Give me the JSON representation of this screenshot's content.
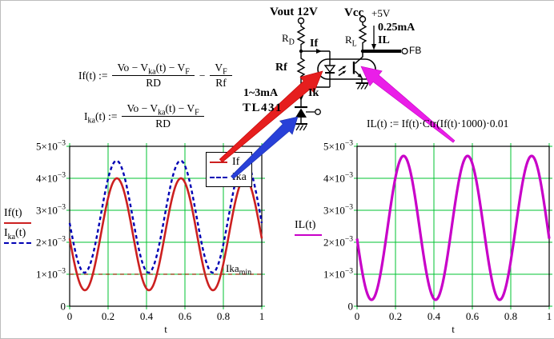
{
  "circuit": {
    "vout_label": "Vout 12V",
    "vcc_label": "Vcc",
    "vcc_value": "+5V",
    "rd_label_html": "R<sub>D</sub>",
    "rl_label_html": "R<sub>L</sub>",
    "rf_label": "Rf",
    "if_label": "If",
    "ik_label": "Ik",
    "il_label": "IL",
    "il_current_label": "0.25mA",
    "cathode_current_label": "1~3mA",
    "tl431_label": "TL431",
    "fb_label": "FB",
    "icons": {
      "optocoupler": "optocoupler-capsule-with-led-and-phototransistor",
      "grounds": "hatched-ground-symbol",
      "terminals": "open-circle-terminal"
    },
    "arrow_colors": {
      "red": "#e61e1e",
      "blue": "#2840d8",
      "magenta": "#ea1ee8"
    }
  },
  "formulas": {
    "if_def": {
      "lhs": "If(t) :=",
      "num_html": "Vo − V<sub>ka</sub>(t) − V<sub>F</sub>",
      "den": "RD",
      "operator": "−",
      "num2_html": "V<sub>F</sub>",
      "den2": "Rf"
    },
    "ika_def": {
      "lhs_html": "I<sub>ka</sub>(t) :=",
      "num_html": "Vo − V<sub>ka</sub>(t) − V<sub>F</sub>",
      "den": "RD"
    },
    "il_def": "IL(t) := If(t)·Ctr(If(t)·1000)·0.01"
  },
  "chart_data": [
    {
      "type": "line",
      "title": "",
      "xlabel": "t",
      "ylabel": "",
      "xlim": [
        0,
        1
      ],
      "ylim": [
        0,
        0.005
      ],
      "grid": true,
      "grid_color": "#00c332",
      "x_ticks": {
        "values": [
          0,
          0.2,
          0.4,
          0.6,
          0.8,
          1
        ],
        "labels": [
          "0",
          "0.2",
          "0.4",
          "0.6",
          "0.8",
          "1"
        ]
      },
      "y_ticks": {
        "values": [
          0,
          0.001,
          0.002,
          0.003,
          0.004,
          0.005
        ],
        "labels": [
          "0",
          "1×10⁻³",
          "2×10⁻³",
          "3×10⁻³",
          "4×10⁻³",
          "5×10⁻³"
        ]
      },
      "series": [
        {
          "name": "If",
          "color": "#cc2020",
          "dash": "solid",
          "width": 2.6,
          "model": {
            "kind": "sine",
            "expr": "mean - amplitude*sin(2*pi*cycles*(t+phase))",
            "mean": 0.00225,
            "amplitude": 0.00175,
            "cycles": 3,
            "phase": 0.004,
            "min": 0.0005,
            "max": 0.004
          }
        },
        {
          "name": "Ika",
          "color": "#0000b4",
          "dash": "dashed",
          "width": 2.4,
          "model": {
            "kind": "sine",
            "expr": "mean - amplitude*sin(2*pi*cycles*(t+phase))",
            "mean": 0.0028,
            "amplitude": 0.00175,
            "cycles": 3,
            "phase": 0.006,
            "min": 0.00105,
            "max": 0.00455
          }
        }
      ],
      "legend": {
        "position": "top-right",
        "entries": [
          {
            "label": "If",
            "color": "#cc2020",
            "dash": "solid"
          },
          {
            "label": "Ika",
            "color": "#0000b4",
            "dash": "dashed"
          }
        ]
      },
      "trace_labels": [
        {
          "html": "If(t)",
          "color": "#cc2020",
          "dash": "solid"
        },
        {
          "html": "I<sub>ka</sub>(t)",
          "color": "#0000b4",
          "dash": "dashed"
        }
      ],
      "hline": {
        "y": 0.001,
        "color": "#8b3000",
        "dash": "dashed",
        "label_html": "Ika<sub>min</sub>"
      }
    },
    {
      "type": "line",
      "title": "",
      "xlabel": "t",
      "ylabel": "",
      "xlim": [
        0,
        1
      ],
      "ylim": [
        0,
        0.005
      ],
      "grid": true,
      "grid_color": "#00c332",
      "x_ticks": {
        "values": [
          0,
          0.2,
          0.4,
          0.6,
          0.8,
          1
        ],
        "labels": [
          "0",
          "0.2",
          "0.4",
          "0.6",
          "0.8",
          "1"
        ]
      },
      "y_ticks": {
        "values": [
          0,
          0.001,
          0.002,
          0.003,
          0.004,
          0.005
        ],
        "labels": [
          "0",
          "1×10⁻³",
          "2×10⁻³",
          "3×10⁻³",
          "4×10⁻³",
          "5×10⁻³"
        ]
      },
      "series": [
        {
          "name": "IL",
          "color": "#c800c8",
          "dash": "solid",
          "width": 3.2,
          "model": {
            "kind": "sine",
            "expr": "mean - amplitude*sin(2*pi*cycles*(t+phase))",
            "mean": 0.00245,
            "amplitude": 0.00225,
            "cycles": 3,
            "phase": 0.008,
            "min": 0.0002,
            "max": 0.0047
          }
        }
      ],
      "trace_labels": [
        {
          "html": "IL(t)",
          "color": "#c800c8",
          "dash": "solid"
        }
      ]
    }
  ]
}
